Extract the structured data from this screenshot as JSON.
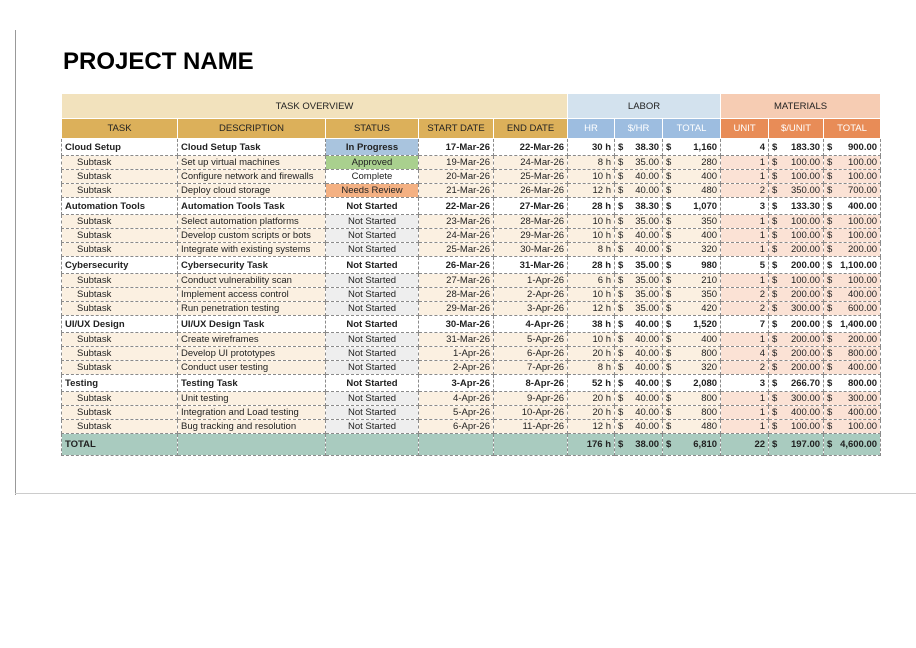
{
  "title": "PROJECT NAME",
  "group_headers": [
    "TASK OVERVIEW",
    "LABOR",
    "MATERIALS"
  ],
  "columns": [
    "TASK",
    "DESCRIPTION",
    "STATUS",
    "START DATE",
    "END DATE",
    "HR",
    "$/HR",
    "TOTAL",
    "UNIT",
    "$/UNIT",
    "TOTAL"
  ],
  "tasks": [
    {
      "row": [
        "Cloud Setup",
        "Cloud Setup Task",
        "In Progress",
        "17-Mar-26",
        "22-Mar-26",
        "30 h",
        [
          "$",
          "38.30"
        ],
        [
          "$",
          "1,160"
        ],
        4,
        [
          "$",
          "183.30"
        ],
        [
          "$",
          "900.00"
        ]
      ],
      "status_color": "#a9c4de",
      "subtasks": [
        {
          "row": [
            "Subtask",
            "Set up virtual machines",
            "Approved",
            "19-Mar-26",
            "24-Mar-26",
            "8 h",
            [
              "$",
              "35.00"
            ],
            [
              "$",
              "280"
            ],
            1,
            [
              "$",
              "100.00"
            ],
            [
              "$",
              "100.00"
            ]
          ],
          "status_color": "#a9d08e"
        },
        {
          "row": [
            "Subtask",
            "Configure network and firewalls",
            "Complete",
            "20-Mar-26",
            "25-Mar-26",
            "10 h",
            [
              "$",
              "40.00"
            ],
            [
              "$",
              "400"
            ],
            1,
            [
              "$",
              "100.00"
            ],
            [
              "$",
              "100.00"
            ]
          ],
          "status_color": "#ffffff"
        },
        {
          "row": [
            "Subtask",
            "Deploy cloud storage",
            "Needs Review",
            "21-Mar-26",
            "26-Mar-26",
            "12 h",
            [
              "$",
              "40.00"
            ],
            [
              "$",
              "480"
            ],
            2,
            [
              "$",
              "350.00"
            ],
            [
              "$",
              "700.00"
            ]
          ],
          "status_color": "#f4b183"
        }
      ]
    },
    {
      "row": [
        "Automation Tools",
        "Automation Tools Task",
        "Not Started",
        "22-Mar-26",
        "27-Mar-26",
        "28 h",
        [
          "$",
          "38.30"
        ],
        [
          "$",
          "1,070"
        ],
        3,
        [
          "$",
          "133.30"
        ],
        [
          "$",
          "400.00"
        ]
      ],
      "subtasks": [
        {
          "row": [
            "Subtask",
            "Select automation platforms",
            "Not Started",
            "23-Mar-26",
            "28-Mar-26",
            "10 h",
            [
              "$",
              "35.00"
            ],
            [
              "$",
              "350"
            ],
            1,
            [
              "$",
              "100.00"
            ],
            [
              "$",
              "100.00"
            ]
          ]
        },
        {
          "row": [
            "Subtask",
            "Develop custom scripts or bots",
            "Not Started",
            "24-Mar-26",
            "29-Mar-26",
            "10 h",
            [
              "$",
              "40.00"
            ],
            [
              "$",
              "400"
            ],
            1,
            [
              "$",
              "100.00"
            ],
            [
              "$",
              "100.00"
            ]
          ]
        },
        {
          "row": [
            "Subtask",
            "Integrate with existing systems",
            "Not Started",
            "25-Mar-26",
            "30-Mar-26",
            "8 h",
            [
              "$",
              "40.00"
            ],
            [
              "$",
              "320"
            ],
            1,
            [
              "$",
              "200.00"
            ],
            [
              "$",
              "200.00"
            ]
          ]
        }
      ]
    },
    {
      "row": [
        "Cybersecurity",
        "Cybersecurity Task",
        "Not Started",
        "26-Mar-26",
        "31-Mar-26",
        "28 h",
        [
          "$",
          "35.00"
        ],
        [
          "$",
          "980"
        ],
        5,
        [
          "$",
          "200.00"
        ],
        [
          "$",
          "1,100.00"
        ]
      ],
      "subtasks": [
        {
          "row": [
            "Subtask",
            "Conduct vulnerability scan",
            "Not Started",
            "27-Mar-26",
            "1-Apr-26",
            "6 h",
            [
              "$",
              "35.00"
            ],
            [
              "$",
              "210"
            ],
            1,
            [
              "$",
              "100.00"
            ],
            [
              "$",
              "100.00"
            ]
          ]
        },
        {
          "row": [
            "Subtask",
            "Implement access control",
            "Not Started",
            "28-Mar-26",
            "2-Apr-26",
            "10 h",
            [
              "$",
              "35.00"
            ],
            [
              "$",
              "350"
            ],
            2,
            [
              "$",
              "200.00"
            ],
            [
              "$",
              "400.00"
            ]
          ]
        },
        {
          "row": [
            "Subtask",
            "Run penetration testing",
            "Not Started",
            "29-Mar-26",
            "3-Apr-26",
            "12 h",
            [
              "$",
              "35.00"
            ],
            [
              "$",
              "420"
            ],
            2,
            [
              "$",
              "300.00"
            ],
            [
              "$",
              "600.00"
            ]
          ]
        }
      ]
    },
    {
      "row": [
        "UI/UX Design",
        "UI/UX Design Task",
        "Not Started",
        "30-Mar-26",
        "4-Apr-26",
        "38 h",
        [
          "$",
          "40.00"
        ],
        [
          "$",
          "1,520"
        ],
        7,
        [
          "$",
          "200.00"
        ],
        [
          "$",
          "1,400.00"
        ]
      ],
      "subtasks": [
        {
          "row": [
            "Subtask",
            "Create wireframes",
            "Not Started",
            "31-Mar-26",
            "5-Apr-26",
            "10 h",
            [
              "$",
              "40.00"
            ],
            [
              "$",
              "400"
            ],
            1,
            [
              "$",
              "200.00"
            ],
            [
              "$",
              "200.00"
            ]
          ]
        },
        {
          "row": [
            "Subtask",
            "Develop UI prototypes",
            "Not Started",
            "1-Apr-26",
            "6-Apr-26",
            "20 h",
            [
              "$",
              "40.00"
            ],
            [
              "$",
              "800"
            ],
            4,
            [
              "$",
              "200.00"
            ],
            [
              "$",
              "800.00"
            ]
          ]
        },
        {
          "row": [
            "Subtask",
            "Conduct user testing",
            "Not Started",
            "2-Apr-26",
            "7-Apr-26",
            "8 h",
            [
              "$",
              "40.00"
            ],
            [
              "$",
              "320"
            ],
            2,
            [
              "$",
              "200.00"
            ],
            [
              "$",
              "400.00"
            ]
          ]
        }
      ]
    },
    {
      "row": [
        "Testing",
        "Testing Task",
        "Not Started",
        "3-Apr-26",
        "8-Apr-26",
        "52 h",
        [
          "$",
          "40.00"
        ],
        [
          "$",
          "2,080"
        ],
        3,
        [
          "$",
          "266.70"
        ],
        [
          "$",
          "800.00"
        ]
      ],
      "subtasks": [
        {
          "row": [
            "Subtask",
            "Unit testing",
            "Not Started",
            "4-Apr-26",
            "9-Apr-26",
            "20 h",
            [
              "$",
              "40.00"
            ],
            [
              "$",
              "800"
            ],
            1,
            [
              "$",
              "300.00"
            ],
            [
              "$",
              "300.00"
            ]
          ]
        },
        {
          "row": [
            "Subtask",
            "Integration and Load testing",
            "Not Started",
            "5-Apr-26",
            "10-Apr-26",
            "20 h",
            [
              "$",
              "40.00"
            ],
            [
              "$",
              "800"
            ],
            1,
            [
              "$",
              "400.00"
            ],
            [
              "$",
              "400.00"
            ]
          ]
        },
        {
          "row": [
            "Subtask",
            "Bug tracking and resolution",
            "Not Started",
            "6-Apr-26",
            "11-Apr-26",
            "12 h",
            [
              "$",
              "40.00"
            ],
            [
              "$",
              "480"
            ],
            1,
            [
              "$",
              "100.00"
            ],
            [
              "$",
              "100.00"
            ]
          ]
        }
      ]
    }
  ],
  "total": [
    "TOTAL",
    null,
    null,
    null,
    null,
    "176 h",
    [
      "$",
      "38.00"
    ],
    [
      "$",
      "6,810"
    ],
    22,
    [
      "$",
      "197.00"
    ],
    [
      "$",
      "4,600.00"
    ]
  ]
}
